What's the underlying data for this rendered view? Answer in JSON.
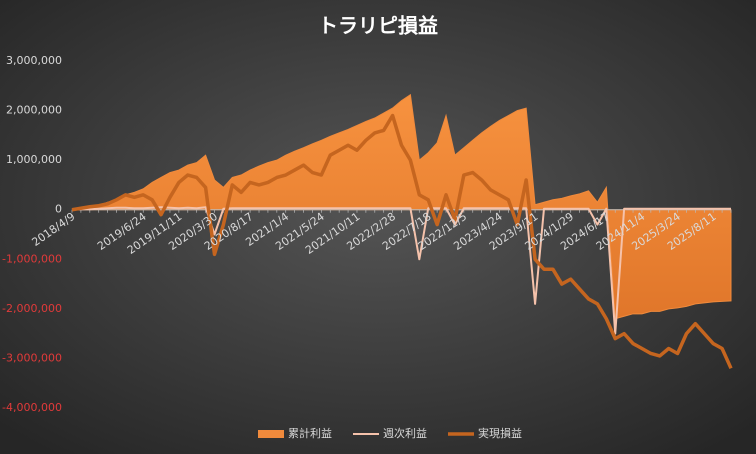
{
  "chart_data": {
    "type": "combo",
    "title": "トラリピ損益",
    "categories": [
      "2018/4/9",
      null,
      null,
      null,
      null,
      null,
      null,
      null,
      "2019/6/24",
      null,
      null,
      null,
      "2019/11/11",
      null,
      null,
      null,
      "2020/3/30",
      null,
      null,
      null,
      "2020/8/17",
      null,
      null,
      null,
      "2021/1/4",
      null,
      null,
      null,
      "2021/5/24",
      null,
      null,
      null,
      "2021/10/11",
      null,
      null,
      null,
      "2022/2/28",
      null,
      null,
      null,
      "2022/7/18",
      null,
      null,
      null,
      "2022/12/5",
      null,
      null,
      null,
      "2023/4/24",
      null,
      null,
      null,
      "2023/9/11",
      null,
      null,
      null,
      "2024/1/29",
      null,
      null,
      null,
      "2024/6/17",
      null,
      null,
      null,
      "2024/11/4",
      null,
      null,
      null,
      "2025/3/24",
      null,
      null,
      null,
      "2025/8/11",
      null,
      null
    ],
    "series": [
      {
        "name": "累計利益",
        "kind": "area",
        "color": "#f08a3c",
        "values": [
          0,
          20000,
          50000,
          80000,
          150000,
          200000,
          300000,
          350000,
          420000,
          550000,
          650000,
          750000,
          800000,
          900000,
          950000,
          1100000,
          600000,
          450000,
          650000,
          700000,
          800000,
          880000,
          950000,
          1000000,
          1100000,
          1180000,
          1250000,
          1330000,
          1400000,
          1480000,
          1550000,
          1620000,
          1700000,
          1780000,
          1850000,
          1950000,
          2050000,
          2200000,
          2320000,
          1000000,
          1150000,
          1350000,
          1900000,
          1100000,
          1250000,
          1400000,
          1550000,
          1680000,
          1800000,
          1900000,
          2000000,
          2050000,
          100000,
          150000,
          200000,
          230000,
          280000,
          320000,
          380000,
          150000,
          450000,
          -2200000,
          -2150000,
          -2100000,
          -2100000,
          -2050000,
          -2050000,
          -2000000,
          -1980000,
          -1950000,
          -1900000,
          -1880000,
          -1860000,
          -1850000,
          -1840000
        ]
      },
      {
        "name": "週次利益",
        "kind": "line",
        "color": "#f5c2ab",
        "values": [
          0,
          10000,
          10000,
          20000,
          30000,
          40000,
          40000,
          30000,
          30000,
          40000,
          50000,
          40000,
          30000,
          40000,
          30000,
          50000,
          -500000,
          20000,
          30000,
          30000,
          30000,
          30000,
          30000,
          30000,
          30000,
          30000,
          30000,
          30000,
          30000,
          30000,
          30000,
          30000,
          30000,
          30000,
          30000,
          30000,
          30000,
          30000,
          30000,
          -1000000,
          30000,
          30000,
          30000,
          -300000,
          30000,
          30000,
          30000,
          30000,
          30000,
          30000,
          30000,
          30000,
          -1900000,
          20000,
          20000,
          20000,
          20000,
          20000,
          20000,
          -300000,
          20000,
          -2500000,
          20000,
          20000,
          20000,
          20000,
          20000,
          20000,
          20000,
          20000,
          20000,
          20000,
          20000,
          20000,
          20000
        ]
      },
      {
        "name": "実現損益",
        "kind": "line",
        "color": "#c5651f",
        "values": [
          0,
          30000,
          60000,
          80000,
          120000,
          200000,
          300000,
          250000,
          300000,
          200000,
          -100000,
          250000,
          550000,
          700000,
          650000,
          450000,
          -900000,
          -300000,
          500000,
          350000,
          550000,
          500000,
          550000,
          650000,
          700000,
          800000,
          900000,
          750000,
          700000,
          1100000,
          1200000,
          1300000,
          1200000,
          1400000,
          1550000,
          1600000,
          1900000,
          1300000,
          1000000,
          300000,
          200000,
          -300000,
          300000,
          -200000,
          700000,
          750000,
          600000,
          400000,
          300000,
          200000,
          -300000,
          600000,
          -1000000,
          -1200000,
          -1200000,
          -1500000,
          -1400000,
          -1600000,
          -1800000,
          -1900000,
          -2200000,
          -2600000,
          -2500000,
          -2700000,
          -2800000,
          -2900000,
          -2950000,
          -2800000,
          -2900000,
          -2500000,
          -2300000,
          -2500000,
          -2700000,
          -2800000,
          -3200000
        ]
      }
    ],
    "ylim": [
      -4000000,
      3000000
    ],
    "yticks": [
      {
        "value": -4000000,
        "label": "-4,000,000"
      },
      {
        "value": -3000000,
        "label": "-3,000,000"
      },
      {
        "value": -2000000,
        "label": "-2,000,000"
      },
      {
        "value": -1000000,
        "label": "-1,000,000"
      },
      0,
      {
        "value": 1000000,
        "label": "1,000,000"
      },
      {
        "value": 2000000,
        "label": "2,000,000"
      },
      {
        "value": 3000000,
        "label": "3,000,000"
      }
    ],
    "negative_tick_color": "#e03a3a",
    "legend": "bottom"
  }
}
